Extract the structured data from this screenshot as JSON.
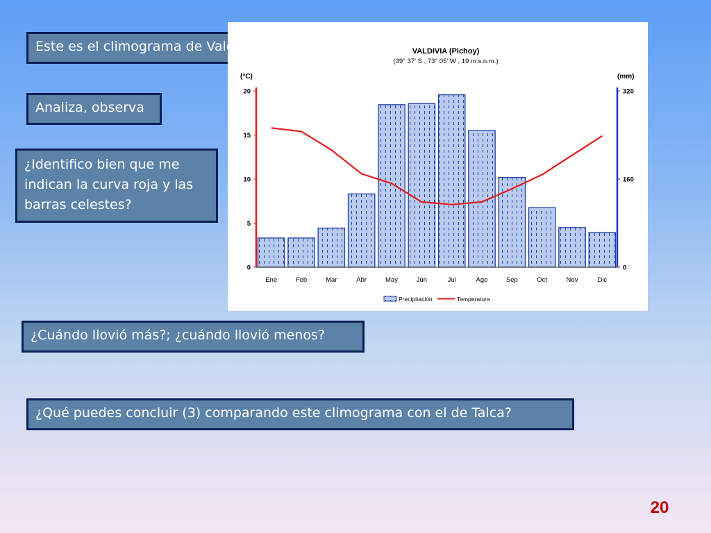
{
  "slide": {
    "boxes": {
      "b1": "Este es el climograma de Valdivia",
      "b2": "Analiza, observa",
      "b3": "¿Identifico bien que me indican la curva roja y las barras celestes?",
      "b4": "¿Cuándo llovió más?; ¿cuándo llovió menos?",
      "b5": "¿Qué puedes concluir (3) comparando este climograma con el de Talca?"
    },
    "page_number": "20"
  },
  "chart_data": {
    "type": "bar",
    "title": "VALDIVIA  (Pichoy)",
    "subtitle": "(39° 37' S , 73° 05' W , 19 m.s.n.m.)",
    "y_left_label": "(°C)",
    "y_right_label": "(mm)",
    "y_left_ticks": [
      0,
      5,
      10,
      15,
      20
    ],
    "y_right_ticks": [
      0,
      160,
      320
    ],
    "ylim_left": [
      0,
      20
    ],
    "ylim_right": [
      0,
      320
    ],
    "categories": [
      "Ene",
      "Feb",
      "Mar",
      "Abr",
      "May",
      "Jun",
      "Jul",
      "Ago",
      "Sep",
      "Oct",
      "Nov",
      "Dic"
    ],
    "series": [
      {
        "name": "Precipitación",
        "axis": "right",
        "kind": "bar",
        "values": [
          53,
          53,
          71,
          133,
          295,
          297,
          313,
          248,
          163,
          108,
          72,
          63
        ]
      },
      {
        "name": "Temperatura",
        "axis": "left",
        "kind": "line",
        "values": [
          15.8,
          15.4,
          13.3,
          10.6,
          9.5,
          7.4,
          7.1,
          7.4,
          8.9,
          10.5,
          12.7,
          14.9
        ]
      }
    ],
    "colors": {
      "bar_fill": "#b9ccef",
      "bar_stroke": "#1f3f9f",
      "line": "#e51a1a",
      "left_axis": "#e51a1a",
      "right_axis": "#2430c8"
    },
    "legend_placement": "bottom-center",
    "grid": false
  }
}
